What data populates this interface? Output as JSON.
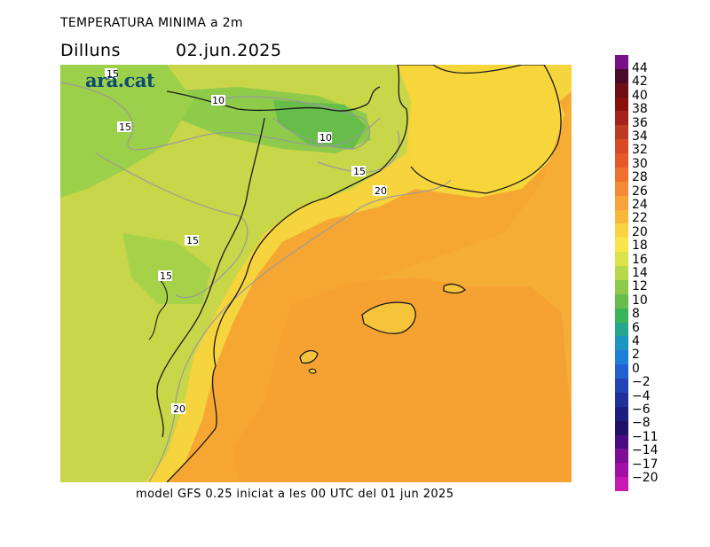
{
  "header": {
    "title": "TEMPERATURA MINIMA a 2m",
    "day": "Dilluns",
    "date": "02.jun.2025"
  },
  "logo": "ara.cat",
  "caption": "model GFS 0.25 iniciat a les 00 UTC del 01 jun 2025",
  "map": {
    "contour_labels": [
      "15",
      "10",
      "15",
      "10",
      "15",
      "20",
      "15",
      "15",
      "20"
    ]
  },
  "colorbar": {
    "labels": [
      "44",
      "42",
      "40",
      "38",
      "36",
      "34",
      "32",
      "30",
      "28",
      "26",
      "24",
      "22",
      "20",
      "18",
      "16",
      "14",
      "12",
      "10",
      "8",
      "6",
      "4",
      "2",
      "0",
      "−2",
      "−4",
      "−6",
      "−8",
      "−11",
      "−14",
      "−17",
      "−20"
    ],
    "colors": [
      "#7a0f8c",
      "#4a0a2a",
      "#6e0d12",
      "#8a1010",
      "#a4221a",
      "#bd3a22",
      "#d84a26",
      "#e55a28",
      "#f0702e",
      "#f58a34",
      "#f7a23a",
      "#f9b83c",
      "#fad43e",
      "#f8e64a",
      "#dbe24a",
      "#b6d84a",
      "#8ecb4a",
      "#66bd4a",
      "#3ab45a",
      "#26a68a",
      "#1c96c2",
      "#1d7fd8",
      "#2060d0",
      "#2244b6",
      "#22309c",
      "#1c1f80",
      "#201068",
      "#4a0a80",
      "#7d0c96",
      "#a10fa6",
      "#c61ab2"
    ]
  }
}
